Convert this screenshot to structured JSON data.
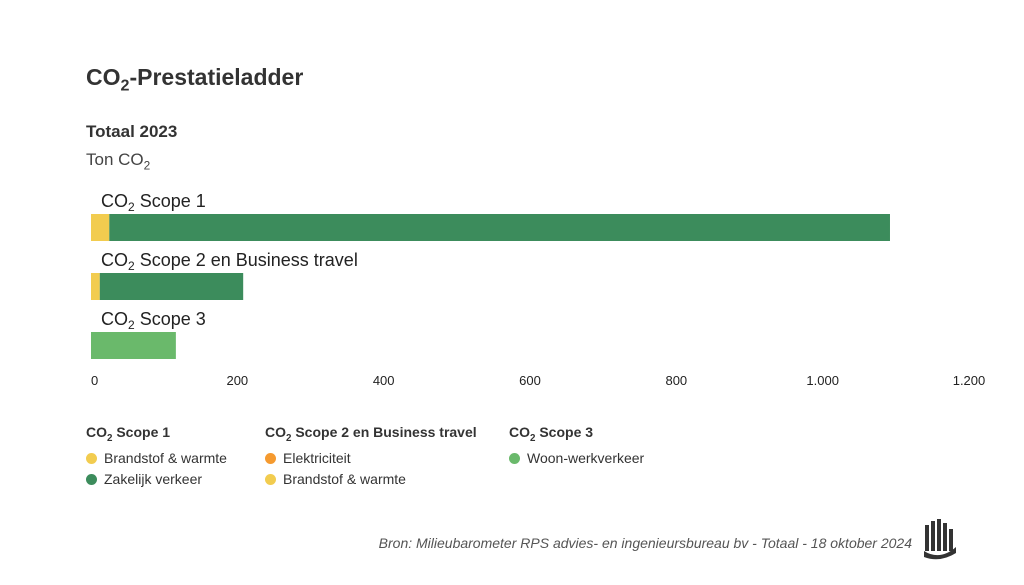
{
  "header": {
    "title_main": "CO",
    "title_sub": "2",
    "title_rest": "-Prestatieladder",
    "subtitle": "Totaal 2023",
    "unit_main": "Ton CO",
    "unit_sub": "2"
  },
  "chart_data": {
    "type": "bar",
    "orientation": "horizontal",
    "stacked": true,
    "title": "Totaal 2023",
    "xlabel": "Ton CO2",
    "xlim": [
      0,
      1200
    ],
    "xticks": [
      "0",
      "200",
      "400",
      "600",
      "800",
      "1.000",
      "1.200"
    ],
    "xtick_values": [
      0,
      200,
      400,
      600,
      800,
      1000,
      1200
    ],
    "grid": false,
    "legend_position": "bottom",
    "categories": [
      {
        "pre": "CO",
        "sub": "2",
        "post": " Scope 1"
      },
      {
        "pre": "CO",
        "sub": "2",
        "post": " Scope 2 en Business travel"
      },
      {
        "pre": "CO",
        "sub": "2",
        "post": " Scope 3"
      }
    ],
    "bars": [
      {
        "segments": [
          {
            "name": "Brandstof & warmte",
            "value": 25,
            "color": "#f2cc4f"
          },
          {
            "name": "Zakelijk verkeer",
            "value": 1067,
            "color": "#3c8c5c"
          }
        ]
      },
      {
        "segments": [
          {
            "name": "Elektriciteit",
            "value": 0,
            "color": "#f59a2f"
          },
          {
            "name": "Brandstof & warmte",
            "value": 12,
            "color": "#f2cc4f"
          },
          {
            "name": "Zakelijk verkeer",
            "value": 196,
            "color": "#3c8c5c"
          }
        ]
      },
      {
        "segments": [
          {
            "name": "Woon-werkverkeer",
            "value": 116,
            "color": "#6ab96b"
          }
        ]
      }
    ]
  },
  "legend": [
    {
      "title_pre": "CO",
      "title_sub": "2",
      "title_post": " Scope 1",
      "items": [
        {
          "label": "Brandstof & warmte",
          "color": "#f2cc4f"
        },
        {
          "label": "Zakelijk verkeer",
          "color": "#3c8c5c"
        }
      ]
    },
    {
      "title_pre": "CO",
      "title_sub": "2",
      "title_post": " Scope 2 en Business travel",
      "items": [
        {
          "label": "Elektriciteit",
          "color": "#f59a2f"
        },
        {
          "label": "Brandstof & warmte",
          "color": "#f2cc4f"
        }
      ]
    },
    {
      "title_pre": "CO",
      "title_sub": "2",
      "title_post": " Scope 3",
      "items": [
        {
          "label": "Woon-werkverkeer",
          "color": "#6ab96b"
        }
      ]
    }
  ],
  "footer": {
    "source": "Bron: Milieubarometer RPS advies- en ingenieursbureau bv - Totaal - 18 oktober 2024",
    "logo_icon": "milieubarometer-logo-icon"
  }
}
